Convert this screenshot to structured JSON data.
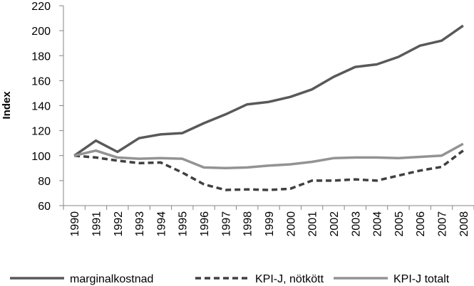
{
  "chart_data": {
    "type": "line",
    "title": "",
    "xlabel": "",
    "ylabel": "Index",
    "ylim": [
      60,
      220
    ],
    "yticks": [
      60,
      80,
      100,
      120,
      140,
      160,
      180,
      200,
      220
    ],
    "grid": false,
    "legend_position": "bottom",
    "categories": [
      "1990",
      "1991",
      "1992",
      "1993",
      "1994",
      "1995",
      "1996",
      "1997",
      "1998",
      "1999",
      "2000",
      "2001",
      "2002",
      "2003",
      "2004",
      "2005",
      "2006",
      "2007",
      "2008"
    ],
    "series": [
      {
        "name": "marginalkostnad",
        "style": "solid",
        "color": "#595959",
        "values": [
          100,
          112,
          103,
          114,
          117,
          118,
          126,
          133,
          141,
          143,
          147,
          153,
          163,
          171,
          173,
          179,
          188,
          192,
          204
        ]
      },
      {
        "name": "KPI-J, nötkött",
        "style": "dashed",
        "color": "#404040",
        "values": [
          100,
          98.5,
          96,
          94,
          94.5,
          86.5,
          77,
          72.5,
          73,
          72.5,
          73.5,
          80,
          80,
          81,
          80,
          84,
          88,
          91,
          104
        ]
      },
      {
        "name": "KPI-J totalt",
        "style": "solid",
        "color": "#939393",
        "values": [
          100,
          104,
          98.5,
          97.5,
          98,
          97.5,
          90.5,
          90,
          90.5,
          92,
          93,
          95,
          98,
          98.5,
          98.5,
          98,
          99,
          100,
          109.5
        ]
      }
    ]
  }
}
